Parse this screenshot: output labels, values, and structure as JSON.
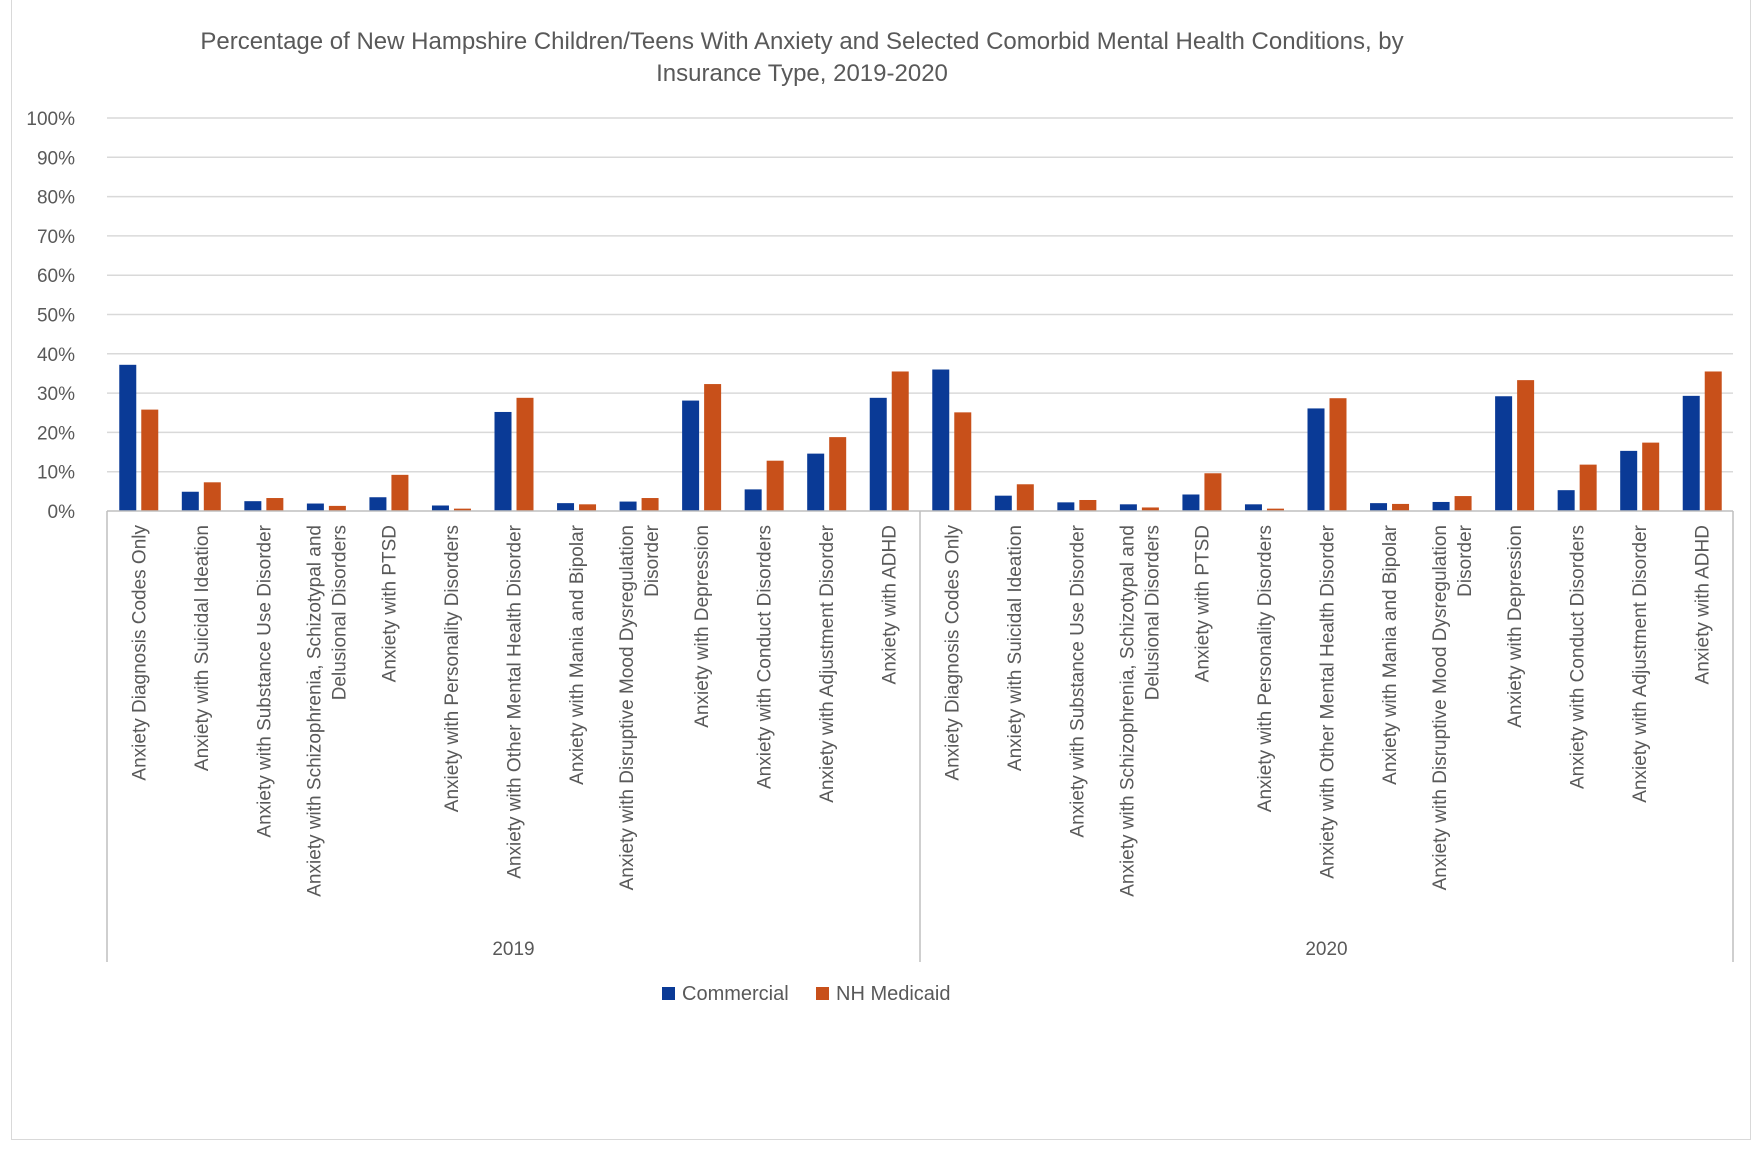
{
  "chart_data": {
    "type": "bar",
    "title_lines": [
      "Percentage of New Hampshire Children/Teens With Anxiety and Selected Comorbid Mental Health Conditions, by",
      "Insurance Type, 2019-2020"
    ],
    "ylim": [
      0,
      100
    ],
    "y_ticks": [
      "0%",
      "10%",
      "20%",
      "30%",
      "40%",
      "50%",
      "60%",
      "70%",
      "80%",
      "90%",
      "100%"
    ],
    "grid": true,
    "legend_position": "bottom",
    "colors": {
      "Commercial": "#0a3a96",
      "NH Medicaid": "#c8501a"
    },
    "categories": [
      "Anxiety Diagnosis Codes Only",
      "Anxiety with Suicidal Ideation",
      "Anxiety with Substance Use Disorder",
      "Anxiety with Schizophrenia, Schizotypal and Delusional Disorders",
      "Anxiety with PTSD",
      "Anxiety with Personality Disorders",
      "Anxiety with Other Mental Health Disorder",
      "Anxiety with Mania and Bipolar",
      "Anxiety with Disruptive Mood Dysregulation Disorder",
      "Anxiety with Depression",
      "Anxiety with Conduct Disorders",
      "Anxiety with Adjustment Disorder",
      "Anxiety with ADHD"
    ],
    "category_label_lines": [
      [
        "Anxiety Diagnosis Codes Only"
      ],
      [
        "Anxiety with Suicidal Ideation"
      ],
      [
        "Anxiety with Substance Use Disorder"
      ],
      [
        "Anxiety with Schizophrenia, Schizotypal and",
        "Delusional Disorders"
      ],
      [
        "Anxiety with PTSD"
      ],
      [
        "Anxiety with Personality Disorders"
      ],
      [
        "Anxiety with Other Mental Health Disorder"
      ],
      [
        "Anxiety with Mania and Bipolar"
      ],
      [
        "Anxiety with Disruptive Mood Dysregulation",
        "Disorder"
      ],
      [
        "Anxiety with Depression"
      ],
      [
        "Anxiety with Conduct Disorders"
      ],
      [
        "Anxiety with Adjustment Disorder"
      ],
      [
        "Anxiety with ADHD"
      ]
    ],
    "groups": [
      {
        "label": "2019",
        "series": [
          {
            "name": "Commercial",
            "values": [
              37.2,
              4.9,
              2.5,
              1.9,
              3.5,
              1.4,
              25.2,
              2.0,
              2.4,
              28.1,
              5.5,
              14.6,
              28.8
            ]
          },
          {
            "name": "NH Medicaid",
            "values": [
              25.8,
              7.3,
              3.3,
              1.3,
              9.2,
              0.6,
              28.8,
              1.7,
              3.3,
              32.3,
              12.8,
              18.8,
              35.5
            ]
          }
        ]
      },
      {
        "label": "2020",
        "series": [
          {
            "name": "Commercial",
            "values": [
              36.0,
              3.9,
              2.2,
              1.7,
              4.2,
              1.7,
              26.1,
              2.0,
              2.3,
              29.2,
              5.3,
              15.3,
              29.3
            ]
          },
          {
            "name": "NH Medicaid",
            "values": [
              25.1,
              6.8,
              2.8,
              0.9,
              9.6,
              0.6,
              28.7,
              1.8,
              3.8,
              33.3,
              11.8,
              17.4,
              35.5
            ]
          }
        ]
      }
    ],
    "legend": [
      {
        "name": "Commercial"
      },
      {
        "name": "NH Medicaid"
      }
    ]
  }
}
